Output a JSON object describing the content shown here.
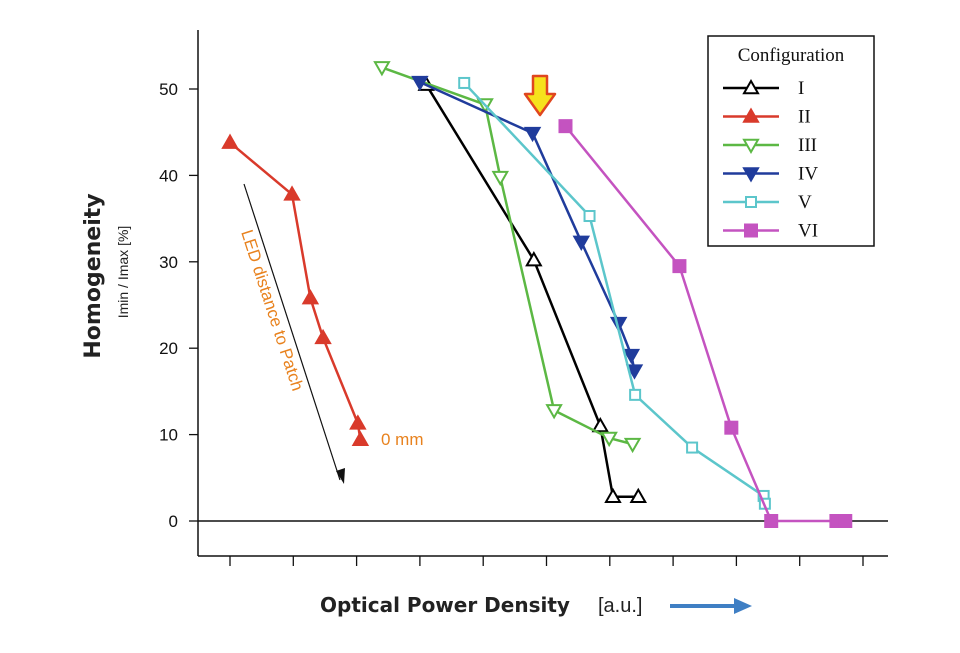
{
  "chart_data": {
    "type": "line",
    "ylabel": "Homogeneity",
    "ylabel_sub": "Imin / Imax [%]",
    "xlabel": "Optical Power Density",
    "xlabel_unit": "[a.u.]",
    "y_ticks": [
      "0",
      "10",
      "20",
      "30",
      "40",
      "50"
    ],
    "ylim": [
      -4,
      57
    ],
    "xlim": [
      -1.5,
      11
    ],
    "x_tick_count": 11,
    "grid": false,
    "legend": {
      "title": "Configuration",
      "placement": "top-right"
    },
    "series": [
      {
        "name": "I",
        "color": "#000000",
        "marker": "triangle-up-open",
        "x": [
          3.1,
          4.8,
          5.85,
          6.05,
          6.45
        ],
        "y": [
          50.5,
          30.2,
          11.0,
          2.8,
          2.8
        ]
      },
      {
        "name": "II",
        "color": "#d93a2b",
        "marker": "triangle-up-filled",
        "x": [
          0,
          0.98,
          1.27,
          1.47,
          2.02,
          2.06
        ],
        "y": [
          43.8,
          37.8,
          25.8,
          21.2,
          11.3,
          9.4
        ]
      },
      {
        "name": "III",
        "color": "#5cb844",
        "marker": "triangle-down-open",
        "x": [
          2.4,
          4.03,
          4.27,
          5.12,
          5.99,
          6.36
        ],
        "y": [
          52.5,
          48.2,
          39.8,
          12.8,
          9.6,
          8.9
        ]
      },
      {
        "name": "IV",
        "color": "#203c9c",
        "marker": "triangle-down-filled",
        "x": [
          3.0,
          4.78,
          5.55,
          6.14,
          6.34,
          6.39
        ],
        "y": [
          50.8,
          44.9,
          32.3,
          22.9,
          19.2,
          17.4
        ]
      },
      {
        "name": "V",
        "color": "#5cc6cb",
        "marker": "square-open",
        "x": [
          3.7,
          5.68,
          6.4,
          7.3,
          8.43,
          8.45
        ],
        "y": [
          50.7,
          35.3,
          14.6,
          8.5,
          2.9,
          2.0
        ]
      },
      {
        "name": "VI",
        "color": "#c453c0",
        "marker": "square-filled",
        "x": [
          5.3,
          7.1,
          7.92,
          8.55,
          9.58,
          9.72
        ],
        "y": [
          45.7,
          29.5,
          10.8,
          0,
          0,
          0
        ]
      }
    ],
    "annotations": [
      {
        "text": "LED distance to Patch",
        "color": "#e8821e"
      },
      {
        "text": "0 mm",
        "color": "#e8821e"
      }
    ]
  }
}
